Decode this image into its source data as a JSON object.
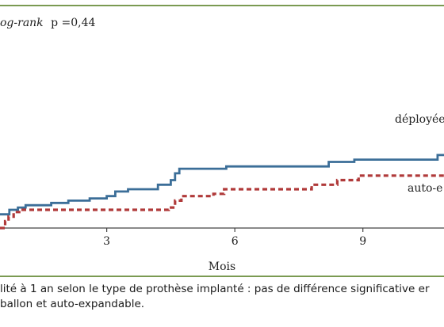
{
  "chart_data": {
    "type": "line",
    "annotation": {
      "test_name": "og-rank",
      "p_value_text": "p =0,44"
    },
    "xlabel": "Mois",
    "x_ticks": [
      3,
      6,
      9
    ],
    "xlim": [
      0.5,
      10.9
    ],
    "ylim": [
      0,
      1
    ],
    "grid": false,
    "series": [
      {
        "name": "déployée",
        "style": "solid",
        "color": "#3b6e98",
        "points": [
          [
            0.5,
            0.06
          ],
          [
            0.72,
            0.08
          ],
          [
            0.92,
            0.09
          ],
          [
            1.1,
            0.1
          ],
          [
            1.7,
            0.11
          ],
          [
            2.1,
            0.12
          ],
          [
            2.6,
            0.13
          ],
          [
            3.0,
            0.14
          ],
          [
            3.2,
            0.16
          ],
          [
            3.5,
            0.17
          ],
          [
            4.2,
            0.19
          ],
          [
            4.5,
            0.21
          ],
          [
            4.6,
            0.24
          ],
          [
            4.7,
            0.26
          ],
          [
            5.4,
            0.26
          ],
          [
            5.8,
            0.27
          ],
          [
            8.1,
            0.27
          ],
          [
            8.2,
            0.29
          ],
          [
            8.7,
            0.29
          ],
          [
            8.8,
            0.3
          ],
          [
            10.7,
            0.3
          ],
          [
            10.75,
            0.32
          ],
          [
            10.9,
            0.32
          ]
        ]
      },
      {
        "name": "auto-e",
        "style": "dashed",
        "color": "#b03a3a",
        "points": [
          [
            0.5,
            0.0
          ],
          [
            0.62,
            0.03
          ],
          [
            0.7,
            0.05
          ],
          [
            0.82,
            0.07
          ],
          [
            1.0,
            0.08
          ],
          [
            3.0,
            0.08
          ],
          [
            3.1,
            0.08
          ],
          [
            4.45,
            0.09
          ],
          [
            4.6,
            0.12
          ],
          [
            4.75,
            0.14
          ],
          [
            5.5,
            0.15
          ],
          [
            5.75,
            0.17
          ],
          [
            7.7,
            0.17
          ],
          [
            7.8,
            0.19
          ],
          [
            8.3,
            0.19
          ],
          [
            8.4,
            0.21
          ],
          [
            8.8,
            0.21
          ],
          [
            8.9,
            0.23
          ],
          [
            10.9,
            0.23
          ]
        ]
      }
    ]
  },
  "caption": {
    "line1": "lité à 1 an selon le type de prothèse implanté : pas de différence significative er",
    "line2": "ballon et auto-expandable."
  }
}
